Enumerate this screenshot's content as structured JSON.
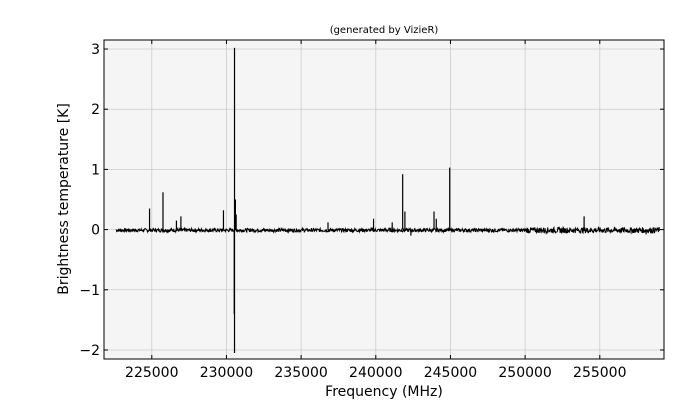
{
  "chart_data": {
    "type": "line",
    "title": "(generated by VizieR)",
    "xlabel": "Frequency (MHz)",
    "ylabel": "Brightness temperature [K]",
    "xlim": [
      221800,
      259300
    ],
    "ylim": [
      -2.15,
      3.15
    ],
    "grid": true,
    "x_ticks": [
      225000,
      230000,
      235000,
      240000,
      245000,
      250000,
      255000
    ],
    "y_ticks": [
      -2,
      -1,
      0,
      1,
      2,
      3
    ],
    "x_tick_labels": [
      "225000",
      "230000",
      "235000",
      "240000",
      "245000",
      "250000",
      "255000"
    ],
    "y_tick_labels": [
      "−2",
      "−1",
      "0",
      "1",
      "2",
      "3"
    ],
    "colors": {
      "line": "#000000",
      "plot_bg": "#f5f5f5",
      "grid": "#cccccc"
    },
    "series": [
      {
        "baseline_range": [
          222600,
          259000
        ],
        "baseline_noise": 0.03,
        "peaks": [
          {
            "x": 224850,
            "y": 0.35
          },
          {
            "x": 225750,
            "y": 0.62
          },
          {
            "x": 226650,
            "y": 0.15
          },
          {
            "x": 226950,
            "y": 0.22
          },
          {
            "x": 229800,
            "y": 0.32
          },
          {
            "x": 230540,
            "y": 3.02
          },
          {
            "x": 230540,
            "y": -2.05
          },
          {
            "x": 230520,
            "y": -1.4
          },
          {
            "x": 230600,
            "y": 0.5
          },
          {
            "x": 230650,
            "y": 0.25
          },
          {
            "x": 236800,
            "y": 0.12
          },
          {
            "x": 239850,
            "y": 0.18
          },
          {
            "x": 241100,
            "y": 0.12
          },
          {
            "x": 241800,
            "y": 0.92
          },
          {
            "x": 241950,
            "y": 0.3
          },
          {
            "x": 242350,
            "y": -0.1
          },
          {
            "x": 243900,
            "y": 0.3
          },
          {
            "x": 244050,
            "y": 0.18
          },
          {
            "x": 244950,
            "y": 1.03
          },
          {
            "x": 253950,
            "y": 0.22
          },
          {
            "x": 258100,
            "y": -0.08
          }
        ]
      }
    ]
  }
}
